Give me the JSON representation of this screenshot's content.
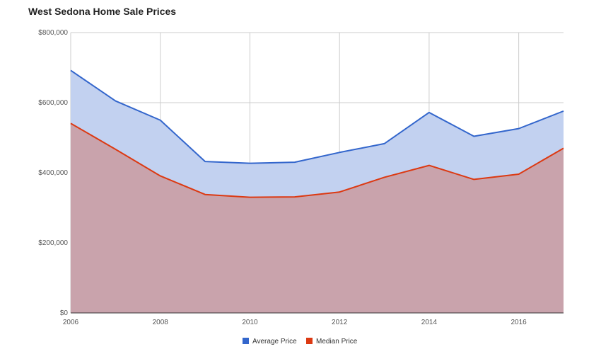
{
  "chart_data": {
    "type": "area",
    "title": "West Sedona Home Sale Prices",
    "xlabel": "",
    "ylabel": "",
    "x": [
      2006,
      2007,
      2008,
      2009,
      2010,
      2011,
      2012,
      2013,
      2014,
      2015,
      2016,
      2017
    ],
    "xlim": [
      2006,
      2017
    ],
    "ylim": [
      0,
      800000
    ],
    "x_ticks": [
      2006,
      2008,
      2010,
      2012,
      2014,
      2016
    ],
    "x_tick_labels": [
      "2006",
      "2008",
      "2010",
      "2012",
      "2014",
      "2016"
    ],
    "y_ticks": [
      0,
      200000,
      400000,
      600000,
      800000
    ],
    "y_tick_labels": [
      "$0",
      "$200,000",
      "$400,000",
      "$600,000",
      "$800,000"
    ],
    "grid": true,
    "overlapping": true,
    "legend_position": "bottom",
    "series": [
      {
        "name": "Average Price",
        "color": "#3366cc",
        "fill_color": "#c2d1f0",
        "values": [
          692000,
          605000,
          550000,
          432000,
          427000,
          430000,
          458000,
          483000,
          572000,
          504000,
          526000,
          576000
        ]
      },
      {
        "name": "Median Price",
        "color": "#dc3912",
        "fill_color": "#c9a3ac",
        "values": [
          541000,
          467000,
          391000,
          338000,
          330000,
          331000,
          345000,
          387000,
          421000,
          381000,
          396000,
          470000
        ]
      }
    ]
  }
}
